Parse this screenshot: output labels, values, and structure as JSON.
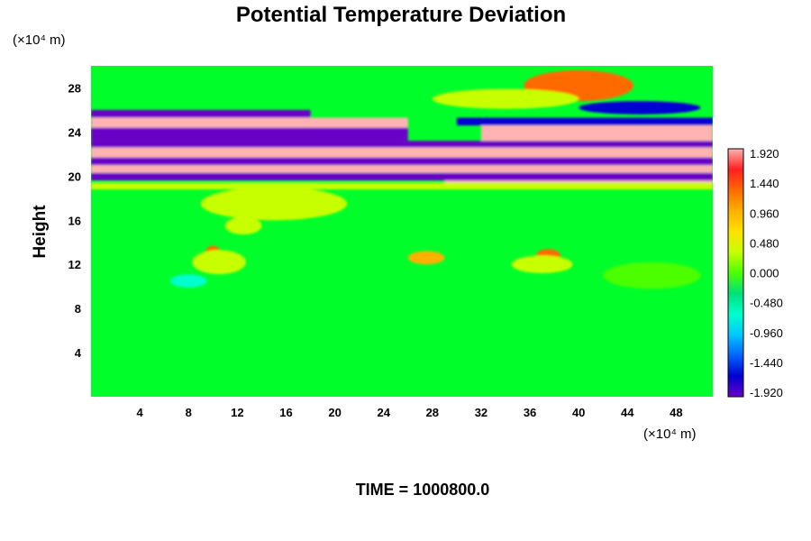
{
  "chart_data": {
    "type": "heatmap",
    "title": "Potential Temperature Deviation",
    "ylabel": "Height",
    "y_unit": "(×10⁴ m)",
    "x_unit": "(×10⁴ m)",
    "xlim": [
      0,
      51
    ],
    "ylim": [
      0,
      30
    ],
    "x_ticks": [
      "4",
      "8",
      "12",
      "16",
      "20",
      "24",
      "28",
      "32",
      "36",
      "40",
      "44",
      "48"
    ],
    "y_ticks": [
      "4",
      "8",
      "12",
      "16",
      "20",
      "24",
      "28"
    ],
    "colorbar": {
      "min": -1.92,
      "max": 1.92,
      "labels": [
        "1.920",
        "1.440",
        "0.960",
        "0.480",
        "0.000",
        "-0.480",
        "-0.960",
        "-1.440",
        "-1.920"
      ],
      "colors": [
        "#ffb3b3",
        "#ff2020",
        "#ff6a00",
        "#ffb000",
        "#ffe000",
        "#c8ff00",
        "#4cff00",
        "#00e07a",
        "#00ffcc",
        "#00c8ff",
        "#0064ff",
        "#0000d0",
        "#6a00c8"
      ]
    },
    "base_color": "#00ff2a",
    "features": [
      {
        "kind": "band",
        "x": [
          0,
          51
        ],
        "y": [
          19.6,
          20.3
        ],
        "value": -1.92
      },
      {
        "kind": "band",
        "x": [
          0,
          51
        ],
        "y": [
          20.3,
          21.0
        ],
        "value": 1.92
      },
      {
        "kind": "band",
        "x": [
          0,
          51
        ],
        "y": [
          21.0,
          21.7
        ],
        "value": -1.92
      },
      {
        "kind": "band",
        "x": [
          0,
          51
        ],
        "y": [
          21.7,
          22.6
        ],
        "value": 1.92
      },
      {
        "kind": "band",
        "x": [
          0,
          51
        ],
        "y": [
          22.6,
          23.2
        ],
        "value": -1.92
      },
      {
        "kind": "band",
        "x": [
          0,
          26
        ],
        "y": [
          23.2,
          24.4
        ],
        "value": -1.92
      },
      {
        "kind": "band",
        "x": [
          0,
          26
        ],
        "y": [
          24.4,
          25.3
        ],
        "value": 1.92
      },
      {
        "kind": "band",
        "x": [
          0,
          18
        ],
        "y": [
          25.3,
          26.0
        ],
        "value": -1.92
      },
      {
        "kind": "band",
        "x": [
          32,
          51
        ],
        "y": [
          23.2,
          24.6
        ],
        "value": 1.92
      },
      {
        "kind": "band",
        "x": [
          30,
          51
        ],
        "y": [
          24.6,
          25.3
        ],
        "value": -1.44
      },
      {
        "kind": "band",
        "x": [
          29,
          51
        ],
        "y": [
          19.0,
          19.6
        ],
        "value": 1.92
      },
      {
        "kind": "band",
        "x": [
          0,
          51
        ],
        "y": [
          18.8,
          19.4
        ],
        "value": 0.48
      },
      {
        "kind": "blob",
        "x": 40,
        "y": 28.2,
        "rx": 3.5,
        "ry": 0.9,
        "value": 1.92
      },
      {
        "kind": "blob",
        "x": 40,
        "y": 28.2,
        "rx": 4.5,
        "ry": 1.4,
        "value": 1.44
      },
      {
        "kind": "blob",
        "x": 34,
        "y": 27.0,
        "rx": 6,
        "ry": 0.9,
        "value": 0.48
      },
      {
        "kind": "blob",
        "x": 45,
        "y": 26.2,
        "rx": 5,
        "ry": 0.6,
        "value": -1.44
      },
      {
        "kind": "blob",
        "x": 10,
        "y": 12.8,
        "rx": 0.7,
        "ry": 0.9,
        "value": 1.44
      },
      {
        "kind": "blob",
        "x": 10.5,
        "y": 12.2,
        "rx": 2.2,
        "ry": 1.1,
        "value": 0.48
      },
      {
        "kind": "blob",
        "x": 12.5,
        "y": 15.5,
        "rx": 1.5,
        "ry": 0.8,
        "value": 0.48
      },
      {
        "kind": "blob",
        "x": 27.5,
        "y": 12.6,
        "rx": 1.5,
        "ry": 0.6,
        "value": 0.96
      },
      {
        "kind": "blob",
        "x": 37.5,
        "y": 12.8,
        "rx": 1.0,
        "ry": 0.6,
        "value": 1.44
      },
      {
        "kind": "blob",
        "x": 37,
        "y": 12.0,
        "rx": 2.5,
        "ry": 0.8,
        "value": 0.48
      },
      {
        "kind": "blob",
        "x": 15,
        "y": 17.5,
        "rx": 6,
        "ry": 1.5,
        "value": 0.2
      },
      {
        "kind": "blob",
        "x": 8,
        "y": 10.5,
        "rx": 1.5,
        "ry": 0.6,
        "value": -0.48
      },
      {
        "kind": "blob",
        "x": 46,
        "y": 11.0,
        "rx": 4,
        "ry": 1.2,
        "value": 0.1
      }
    ]
  },
  "time_label": "TIME = 1000800.0"
}
